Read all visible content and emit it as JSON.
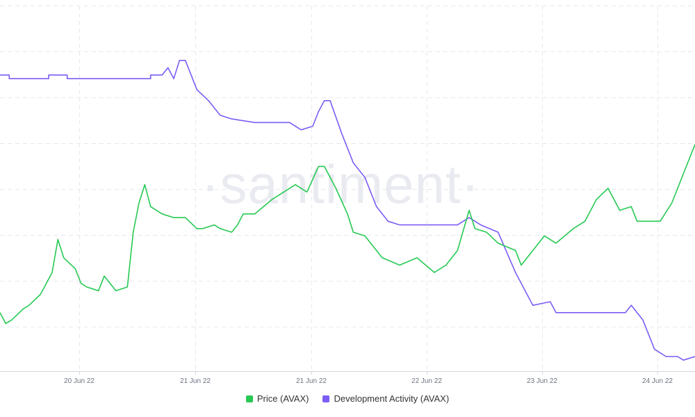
{
  "chart_data": {
    "type": "line",
    "watermark": "·santiment·",
    "x_ticks": [
      "20 Jun 22",
      "21 Jun 22",
      "21 Jun 22",
      "22 Jun 22",
      "23 Jun 22",
      "24 Jun 22"
    ],
    "x_range": [
      0,
      6
    ],
    "grid": true,
    "legend_position": "bottom-center",
    "series": [
      {
        "name": "Price (AVAX)",
        "color": "#26c953",
        "axis": "left",
        "ylim": [
          0,
          100
        ],
        "points": [
          [
            0.0,
            16
          ],
          [
            0.05,
            13
          ],
          [
            0.1,
            14
          ],
          [
            0.2,
            17
          ],
          [
            0.25,
            18
          ],
          [
            0.35,
            21
          ],
          [
            0.45,
            27
          ],
          [
            0.5,
            36
          ],
          [
            0.55,
            31
          ],
          [
            0.65,
            28
          ],
          [
            0.7,
            24
          ],
          [
            0.75,
            23
          ],
          [
            0.85,
            22
          ],
          [
            0.9,
            26
          ],
          [
            1.0,
            22
          ],
          [
            1.1,
            23
          ],
          [
            1.15,
            38
          ],
          [
            1.2,
            46
          ],
          [
            1.25,
            51
          ],
          [
            1.3,
            45
          ],
          [
            1.4,
            43
          ],
          [
            1.5,
            42
          ],
          [
            1.6,
            42
          ],
          [
            1.7,
            39
          ],
          [
            1.75,
            39
          ],
          [
            1.85,
            40
          ],
          [
            1.9,
            39
          ],
          [
            2.0,
            38
          ],
          [
            2.05,
            40
          ],
          [
            2.1,
            43
          ],
          [
            2.2,
            43
          ],
          [
            2.35,
            47
          ],
          [
            2.45,
            49
          ],
          [
            2.55,
            51
          ],
          [
            2.65,
            49
          ],
          [
            2.75,
            56
          ],
          [
            2.8,
            56
          ],
          [
            2.9,
            50
          ],
          [
            3.0,
            43
          ],
          [
            3.05,
            38
          ],
          [
            3.15,
            37
          ],
          [
            3.3,
            31
          ],
          [
            3.45,
            29
          ],
          [
            3.6,
            31
          ],
          [
            3.75,
            27
          ],
          [
            3.85,
            29
          ],
          [
            3.95,
            33
          ],
          [
            4.05,
            44
          ],
          [
            4.1,
            39
          ],
          [
            4.2,
            38
          ],
          [
            4.3,
            35
          ],
          [
            4.45,
            33
          ],
          [
            4.5,
            29
          ],
          [
            4.6,
            33
          ],
          [
            4.7,
            37
          ],
          [
            4.8,
            35
          ],
          [
            4.95,
            39
          ],
          [
            5.05,
            41
          ],
          [
            5.15,
            47
          ],
          [
            5.25,
            50
          ],
          [
            5.35,
            44
          ],
          [
            5.45,
            45
          ],
          [
            5.5,
            41
          ],
          [
            5.6,
            41
          ],
          [
            5.7,
            41
          ],
          [
            5.8,
            46
          ],
          [
            5.9,
            54
          ],
          [
            6.0,
            62
          ]
        ]
      },
      {
        "name": "Development Activity (AVAX)",
        "color": "#7c5cf5",
        "axis": "right",
        "ylim": [
          0,
          100
        ],
        "points": [
          [
            0.0,
            81
          ],
          [
            0.08,
            81
          ],
          [
            0.08,
            80
          ],
          [
            0.42,
            80
          ],
          [
            0.42,
            81
          ],
          [
            0.58,
            81
          ],
          [
            0.58,
            80
          ],
          [
            1.3,
            80
          ],
          [
            1.3,
            81
          ],
          [
            1.4,
            81
          ],
          [
            1.45,
            83
          ],
          [
            1.5,
            80
          ],
          [
            1.55,
            85
          ],
          [
            1.6,
            85
          ],
          [
            1.7,
            77
          ],
          [
            1.8,
            74
          ],
          [
            1.9,
            70
          ],
          [
            2.0,
            69
          ],
          [
            2.2,
            68
          ],
          [
            2.35,
            68
          ],
          [
            2.5,
            68
          ],
          [
            2.6,
            66
          ],
          [
            2.7,
            67
          ],
          [
            2.75,
            71
          ],
          [
            2.8,
            74
          ],
          [
            2.85,
            74
          ],
          [
            2.95,
            65
          ],
          [
            3.05,
            57
          ],
          [
            3.15,
            53
          ],
          [
            3.25,
            45
          ],
          [
            3.35,
            41
          ],
          [
            3.45,
            40
          ],
          [
            3.6,
            40
          ],
          [
            3.85,
            40
          ],
          [
            3.95,
            40
          ],
          [
            4.05,
            42
          ],
          [
            4.15,
            40
          ],
          [
            4.3,
            38
          ],
          [
            4.45,
            27
          ],
          [
            4.6,
            18
          ],
          [
            4.75,
            19
          ],
          [
            4.8,
            16
          ],
          [
            5.0,
            16
          ],
          [
            5.3,
            16
          ],
          [
            5.4,
            16
          ],
          [
            5.45,
            18
          ],
          [
            5.55,
            14
          ],
          [
            5.65,
            6
          ],
          [
            5.75,
            4
          ],
          [
            5.85,
            4
          ],
          [
            5.9,
            3
          ],
          [
            6.0,
            4
          ]
        ]
      }
    ]
  }
}
